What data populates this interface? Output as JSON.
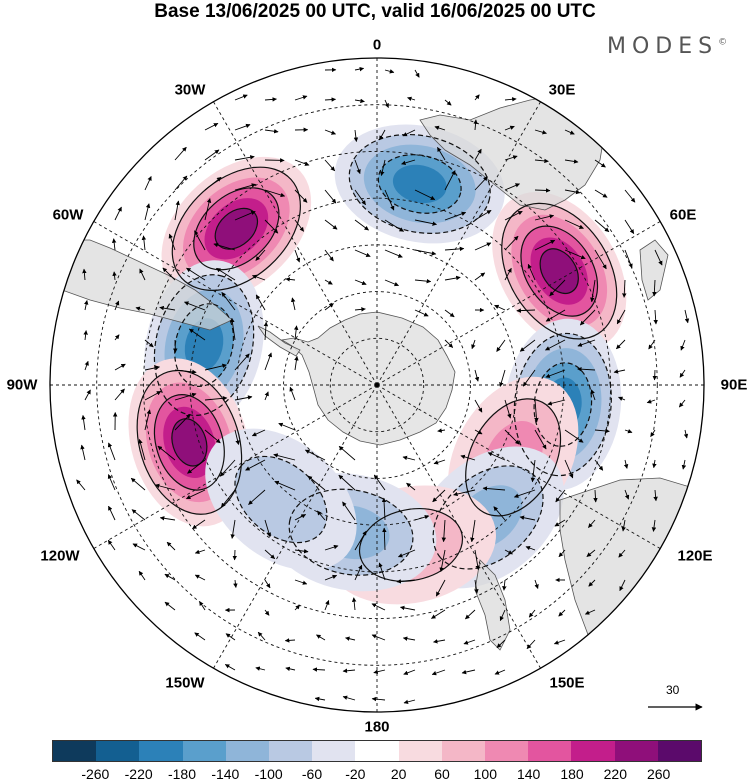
{
  "title": "Base 13/06/2025 00 UTC, valid 16/06/2025 00 UTC",
  "logo": {
    "text": "MODES",
    "mark": "©"
  },
  "longitude_labels": {
    "lon_0": "0",
    "lon_30E": "30E",
    "lon_60E": "60E",
    "lon_90E": "90E",
    "lon_120E": "120E",
    "lon_150E": "150E",
    "lon_180": "180",
    "lon_150W": "150W",
    "lon_120W": "120W",
    "lon_90W": "90W",
    "lon_60W": "60W",
    "lon_30W": "30W"
  },
  "vector_reference": {
    "value": "30"
  },
  "colorbar": {
    "colors": [
      "#0e3a5c",
      "#135f91",
      "#2c81b8",
      "#5a9fcc",
      "#8fb5d9",
      "#b9c9e3",
      "#e1e3f0",
      "#ffffff",
      "#f8dbe0",
      "#f4b7c7",
      "#ef89b2",
      "#e3559f",
      "#c31e8b",
      "#8f0f7a",
      "#5b0a6b"
    ],
    "labels": [
      "-260",
      "-220",
      "-180",
      "-140",
      "-100",
      "-60",
      "-20",
      "20",
      "60",
      "100",
      "140",
      "180",
      "220",
      "260"
    ]
  },
  "anomalies": [
    {
      "lon": -42,
      "lat": -45,
      "value": 240
    },
    {
      "lon": 12,
      "lat": -46,
      "value": -210
    },
    {
      "lon": 58,
      "lat": -44,
      "value": 240
    },
    {
      "lon": -77,
      "lat": -52,
      "value": -180
    },
    {
      "lon": 96,
      "lat": -50,
      "value": -190
    },
    {
      "lon": -107,
      "lat": -48,
      "value": 220
    },
    {
      "lon": 118,
      "lat": -57,
      "value": 130
    },
    {
      "lon": 140,
      "lat": -53,
      "value": -120
    },
    {
      "lon": 168,
      "lat": -55,
      "value": 90
    },
    {
      "lon": -170,
      "lat": -58,
      "value": -110
    },
    {
      "lon": -140,
      "lat": -58,
      "value": -80
    }
  ]
}
